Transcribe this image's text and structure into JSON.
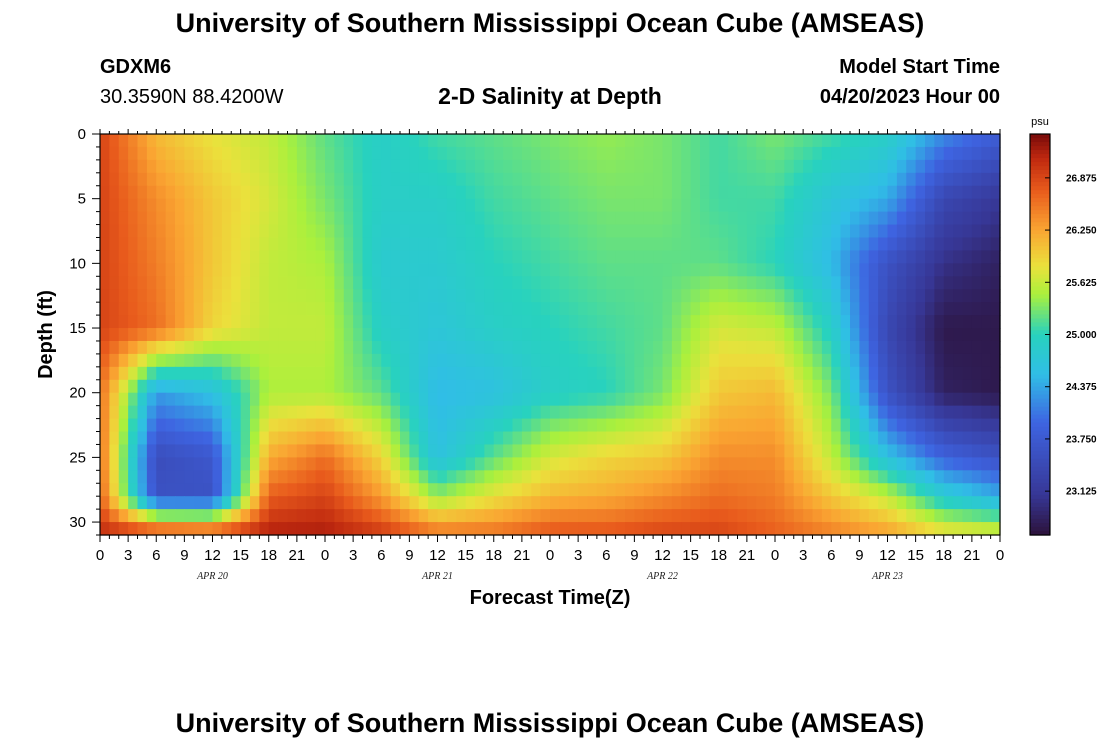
{
  "title": "University of Southern Mississippi Ocean Cube (AMSEAS)",
  "title_repeat": "University of Southern Mississippi Ocean Cube (AMSEAS)",
  "station": "GDXM6",
  "coordinates": "30.3590N  88.4200W",
  "subtitle": "2-D Salinity at Depth",
  "model_start_label": "Model Start Time",
  "model_start_value": "04/20/2023 Hour 00",
  "chart_data": {
    "type": "heatmap",
    "title": "2-D Salinity at Depth",
    "xlabel": "Forecast Time(Z)",
    "ylabel": "Depth (ft)",
    "x_tick_labels": [
      "0",
      "3",
      "6",
      "9",
      "12",
      "15",
      "18",
      "21",
      "0",
      "3",
      "6",
      "9",
      "12",
      "15",
      "18",
      "21",
      "0",
      "3",
      "6",
      "9",
      "12",
      "15",
      "18",
      "21",
      "0",
      "3",
      "6",
      "9",
      "12",
      "15",
      "18",
      "21",
      "0"
    ],
    "x_range_hours": [
      0,
      96
    ],
    "day_labels": [
      {
        "label": "APR 20",
        "hour": 12
      },
      {
        "label": "APR 21",
        "hour": 36
      },
      {
        "label": "APR 22",
        "hour": 60
      },
      {
        "label": "APR 23",
        "hour": 84
      }
    ],
    "y_ticks": [
      0,
      5,
      10,
      15,
      20,
      25,
      30
    ],
    "ylim": [
      0,
      31
    ],
    "y_inverted": true,
    "colorbar": {
      "unit": "psu",
      "labels": [
        "26.875",
        "26.250",
        "25.625",
        "25.000",
        "24.375",
        "23.750",
        "23.125"
      ],
      "range": [
        22.6,
        27.4
      ]
    },
    "grid_hours": [
      0,
      6,
      12,
      18,
      24,
      30,
      36,
      42,
      48,
      54,
      60,
      66,
      72,
      78,
      84,
      90,
      96
    ],
    "grid_depths": [
      0,
      5,
      10,
      15,
      20,
      25,
      28,
      31
    ],
    "values": [
      [
        26.9,
        26.1,
        25.8,
        25.6,
        25.2,
        24.9,
        25.1,
        25.2,
        25.3,
        25.4,
        25.3,
        25.1,
        25.3,
        25.1,
        24.9,
        24.2,
        23.8
      ],
      [
        26.9,
        26.4,
        26.0,
        25.7,
        25.3,
        24.9,
        24.9,
        25.1,
        25.2,
        25.3,
        25.3,
        25.1,
        25.1,
        24.7,
        24.4,
        23.4,
        23.1
      ],
      [
        26.9,
        26.5,
        26.0,
        25.6,
        25.5,
        24.8,
        24.8,
        25.0,
        25.1,
        25.2,
        25.2,
        25.2,
        25.0,
        24.5,
        23.6,
        23.0,
        22.8
      ],
      [
        26.9,
        26.6,
        25.9,
        25.6,
        25.6,
        24.9,
        24.7,
        24.9,
        25.0,
        25.1,
        25.2,
        25.7,
        25.6,
        24.9,
        23.4,
        22.7,
        22.7
      ],
      [
        26.6,
        24.3,
        24.6,
        25.5,
        25.5,
        25.2,
        24.5,
        24.6,
        24.9,
        25.0,
        25.3,
        26.0,
        26.1,
        25.3,
        23.6,
        22.8,
        22.7
      ],
      [
        26.6,
        23.5,
        23.7,
        26.2,
        26.6,
        25.9,
        24.6,
        25.2,
        25.7,
        25.9,
        26.0,
        26.4,
        26.4,
        25.6,
        24.6,
        23.9,
        23.6
      ],
      [
        26.7,
        23.6,
        23.6,
        26.7,
        26.9,
        26.3,
        25.4,
        25.8,
        26.1,
        26.2,
        26.4,
        26.6,
        26.5,
        26.0,
        25.6,
        24.8,
        24.4
      ],
      [
        27.1,
        27.1,
        27.0,
        27.2,
        27.2,
        27.0,
        26.6,
        26.6,
        26.8,
        26.8,
        26.9,
        26.9,
        26.7,
        26.5,
        26.3,
        25.9,
        25.8
      ]
    ]
  }
}
